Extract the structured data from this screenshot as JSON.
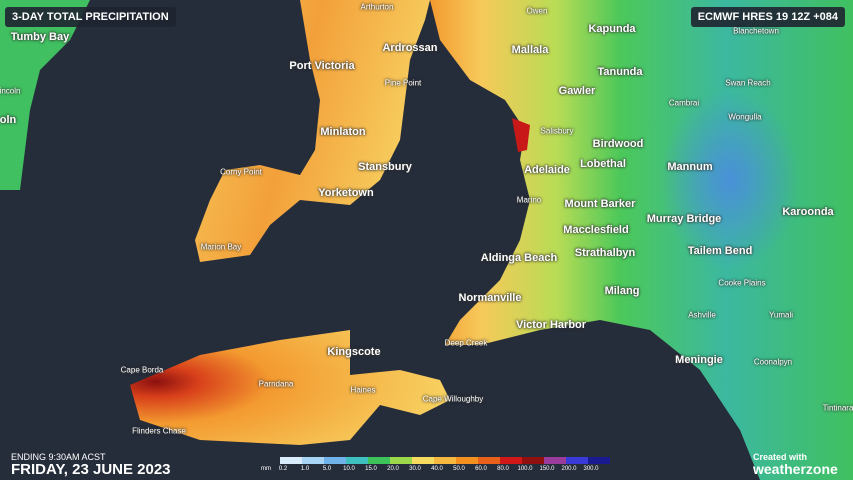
{
  "header": {
    "title": "3-DAY TOTAL PRECIPITATION",
    "model_run": "ECMWF HRES 19 12Z +084"
  },
  "places": [
    "Tumby Bay",
    "Arthurton",
    "Owen",
    "Blanchetown",
    "Kapunda",
    "Ardrossan",
    "Mallala",
    "Port Victoria",
    "Tanunda",
    "Pine Point",
    "Swan Reach",
    "Gawler",
    "Cambrai",
    "Wongulla",
    "incoln",
    "oln",
    "Minlaton",
    "Salisbury",
    "Birdwood",
    "Lobethal",
    "Stansbury",
    "Mannum",
    "Adelaide",
    "Corny Point",
    "Yorketown",
    "Marino",
    "Mount Barker",
    "Karoonda",
    "Murray Bridge",
    "Macclesfield",
    "Marion Bay",
    "Strathalbyn",
    "Tailem Bend",
    "Aldinga Beach",
    "Cooke Plains",
    "Milang",
    "Normanville",
    "Ashville",
    "Yumali",
    "Victor Harbor",
    "Deep Creek",
    "Kingscote",
    "Meningie",
    "Coonalpyn",
    "Cape Borda",
    "Parndana",
    "Haines",
    "Cape Willoughby",
    "Tintinara",
    "Flinders Chase"
  ],
  "legend": {
    "unit": "mm",
    "items": [
      {
        "label": "0.2",
        "color": "#d8ecfb"
      },
      {
        "label": "1.0",
        "color": "#a8d4f5"
      },
      {
        "label": "5.0",
        "color": "#6fb3ea"
      },
      {
        "label": "10.0",
        "color": "#3fc0c0"
      },
      {
        "label": "15.0",
        "color": "#3cc45a"
      },
      {
        "label": "20.0",
        "color": "#9bd84a"
      },
      {
        "label": "30.0",
        "color": "#f5dc60"
      },
      {
        "label": "40.0",
        "color": "#f7b840"
      },
      {
        "label": "50.0",
        "color": "#f39020"
      },
      {
        "label": "60.0",
        "color": "#e8601a"
      },
      {
        "label": "80.0",
        "color": "#d01818"
      },
      {
        "label": "100.0",
        "color": "#901010"
      },
      {
        "label": "150.0",
        "color": "#9a3c9c"
      },
      {
        "label": "200.0",
        "color": "#3a3ad8"
      },
      {
        "label": "300.0",
        "color": "#1a1a90"
      }
    ]
  },
  "footer": {
    "ending": "ENDING 9:30AM ACST",
    "date": "FRIDAY, 23 JUNE 2023"
  },
  "brand": {
    "line1": "Created with",
    "line2": "weatherzone"
  }
}
